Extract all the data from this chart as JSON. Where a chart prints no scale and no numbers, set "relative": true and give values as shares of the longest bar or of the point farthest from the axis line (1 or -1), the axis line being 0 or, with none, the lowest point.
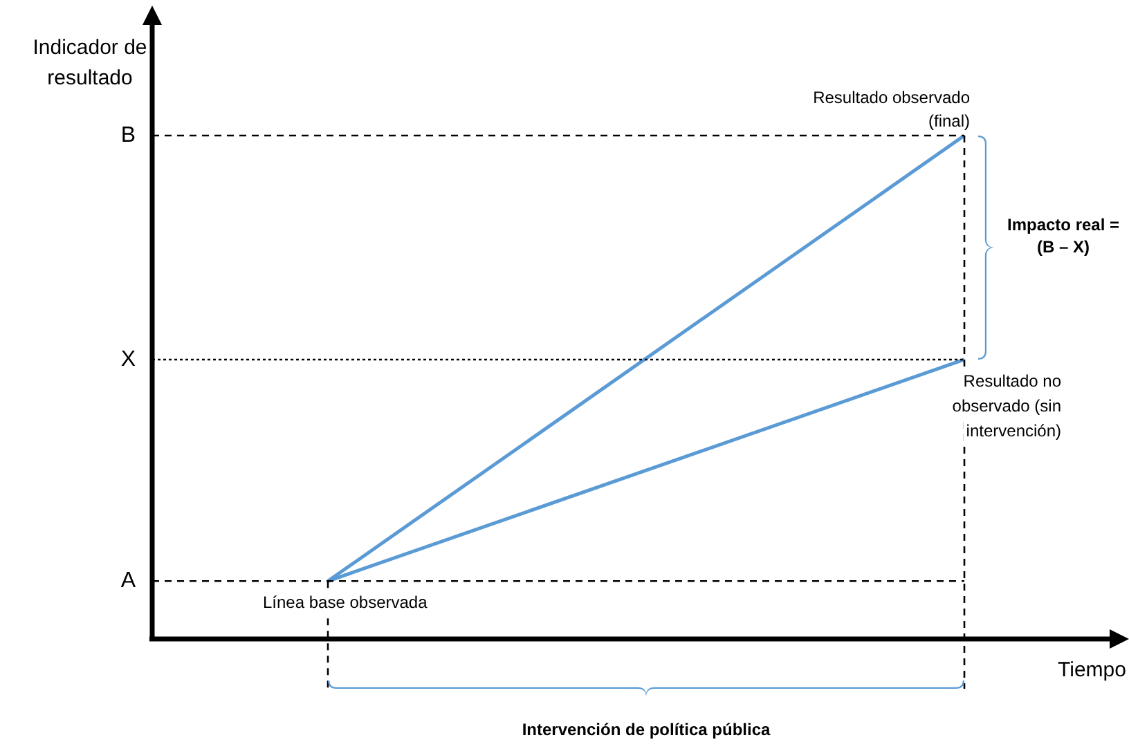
{
  "chart_data": {
    "type": "line",
    "relative": true,
    "xlabel": "Tiempo",
    "ylabel": "Indicador de resultado",
    "categories": [
      null,
      null
    ],
    "legend": false,
    "marker": "none",
    "line_style": "solid",
    "series": [
      {
        "color": "#5b9bd5",
        "values": [
          0.115,
          1
        ]
      },
      {
        "color": "#5b9bd5",
        "values": [
          0.115,
          0.555
        ]
      }
    ],
    "ref_lines": [
      {
        "axis": "y",
        "value": 0.115,
        "label": "A",
        "line_style": "dashed",
        "color": "#000000"
      },
      {
        "axis": "y",
        "value": 0.555,
        "label": "X",
        "line_style": "dotted",
        "color": "#000000"
      },
      {
        "axis": "y",
        "value": 1,
        "label": "B",
        "line_style": "dashed",
        "color": "#000000"
      }
    ],
    "annotations": [
      "Resultado observado (final)",
      "Resultado no observado (sin intervención)",
      "Línea base observada",
      "Intervención de política pública",
      "Impacto real = (B – X)"
    ]
  }
}
